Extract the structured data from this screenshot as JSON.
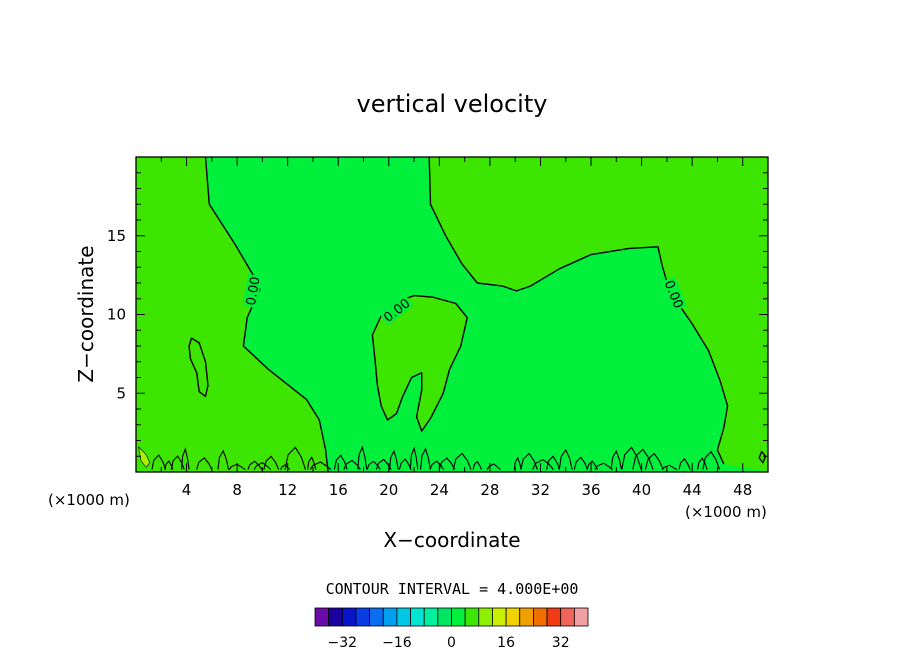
{
  "chart_data": {
    "type": "contour",
    "title": "vertical velocity",
    "xlabel": "X−coordinate",
    "ylabel": "Z−coordinate",
    "x_unit_left": "(×1000 m)",
    "x_unit_right": "(×1000 m)",
    "xlim": [
      0,
      50
    ],
    "ylim": [
      0,
      20
    ],
    "x_ticks": [
      4,
      8,
      12,
      16,
      20,
      24,
      28,
      32,
      36,
      40,
      44,
      48
    ],
    "y_ticks": [
      5,
      10,
      15
    ],
    "contour_interval_text": "CONTOUR INTERVAL = 4.000E+00",
    "contour_label": "0.00",
    "colorbar": {
      "levels": [
        -36,
        -32,
        -28,
        -24,
        -20,
        -16,
        -12,
        -8,
        -4,
        0,
        4,
        8,
        12,
        16,
        20,
        24,
        28,
        32,
        36
      ],
      "colors": [
        "#6a0aa8",
        "#1c00a0",
        "#0a14c8",
        "#0a3ce6",
        "#0a6ef0",
        "#00a0f0",
        "#00c8e6",
        "#00e6d2",
        "#00f0a0",
        "#00e664",
        "#00f03c",
        "#3ce600",
        "#8cf000",
        "#c8f000",
        "#f0d200",
        "#f0a000",
        "#f06e00",
        "#f03c14",
        "#f0645a",
        "#f0a0a0"
      ],
      "tick_labels": [
        "−32",
        "−16",
        "0",
        "16",
        "32"
      ],
      "tick_values": [
        -32,
        -16,
        0,
        16,
        32
      ]
    },
    "regions": [
      {
        "label": "0 to 4",
        "color": "#00f03c"
      },
      {
        "label": "4 to 8",
        "color": "#3ce600"
      }
    ],
    "contours": [
      {
        "level": 0,
        "points": [
          [
            5.5,
            20
          ],
          [
            5.8,
            17
          ],
          [
            7.8,
            14.5
          ],
          [
            9.2,
            12.6
          ],
          [
            9.8,
            11.6
          ],
          [
            8.8,
            9.8
          ],
          [
            8.5,
            8
          ],
          [
            10.5,
            6.5
          ],
          [
            13.5,
            4.6
          ],
          [
            14.5,
            3.3
          ],
          [
            15,
            1.4
          ],
          [
            15.2,
            0
          ]
        ]
      },
      {
        "level": 0,
        "points": [
          [
            23.2,
            20
          ],
          [
            23.3,
            17
          ],
          [
            24.5,
            15
          ],
          [
            25.8,
            13.2
          ],
          [
            27,
            12
          ],
          [
            29,
            11.8
          ],
          [
            30.1,
            11.5
          ],
          [
            31.2,
            11.8
          ],
          [
            33.5,
            12.9
          ],
          [
            36,
            13.8
          ],
          [
            39,
            14.2
          ],
          [
            41.3,
            14.3
          ],
          [
            41.6,
            13.2
          ],
          [
            42.2,
            11.5
          ],
          [
            44,
            9.4
          ],
          [
            45.3,
            7.7
          ],
          [
            46.2,
            5.8
          ],
          [
            46.8,
            4.2
          ],
          [
            46.5,
            2.8
          ],
          [
            46,
            1.4
          ],
          [
            46.5,
            0.5
          ]
        ]
      },
      {
        "level": 0,
        "points": [
          [
            22,
            11.2
          ],
          [
            23.5,
            11.1
          ],
          [
            25.3,
            10.7
          ],
          [
            26.2,
            9.8
          ],
          [
            25.7,
            8
          ],
          [
            24.8,
            6.5
          ],
          [
            24.3,
            5
          ],
          [
            23.3,
            3.4
          ],
          [
            22.6,
            2.6
          ],
          [
            22.2,
            3.5
          ],
          [
            22.6,
            5.2
          ],
          [
            22.6,
            6.3
          ],
          [
            21.8,
            6
          ],
          [
            21.1,
            4.8
          ],
          [
            20.6,
            3.7
          ],
          [
            19.9,
            3.3
          ],
          [
            19.4,
            4.2
          ],
          [
            19.1,
            5.5
          ],
          [
            18.9,
            7.2
          ],
          [
            18.7,
            8.7
          ],
          [
            19.5,
            10.1
          ],
          [
            20.6,
            10.8
          ],
          [
            22,
            11.2
          ]
        ]
      },
      {
        "level": 0,
        "points": [
          [
            4.4,
            8.5
          ],
          [
            5,
            8.2
          ],
          [
            5.5,
            7
          ],
          [
            5.7,
            5.5
          ],
          [
            5.5,
            4.8
          ],
          [
            5,
            5.1
          ],
          [
            4.8,
            6.3
          ],
          [
            4.3,
            7.2
          ],
          [
            4.2,
            8
          ],
          [
            4.4,
            8.5
          ]
        ]
      },
      {
        "level": 0,
        "points": [
          [
            49.5,
            1.3
          ],
          [
            49.8,
            1
          ],
          [
            49.6,
            0.6
          ],
          [
            49.3,
            0.9
          ],
          [
            49.5,
            1.3
          ]
        ]
      },
      {
        "level": 4,
        "points": [
          [
            0.2,
            1.6
          ],
          [
            0.8,
            1.1
          ],
          [
            1.1,
            0.6
          ],
          [
            0.8,
            0.3
          ],
          [
            0.4,
            0.7
          ],
          [
            0.2,
            1.6
          ]
        ]
      }
    ],
    "x_range_source": "tick labels"
  }
}
